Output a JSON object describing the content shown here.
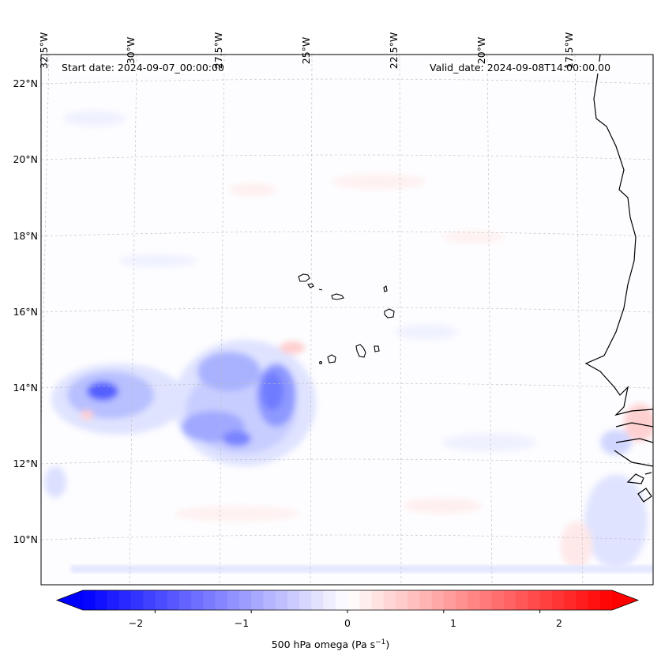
{
  "title": {
    "start_date": "Start date: 2024-09-07_00:00:00",
    "valid_date": "Valid_date: 2024-09-08T14:00:00.00"
  },
  "lon_labels": [
    "32.5°W",
    "30°W",
    "27.5°W",
    "25°W",
    "22.5°W",
    "20°W",
    "17.5°W"
  ],
  "lat_labels": [
    "22°N",
    "20°N",
    "18°N",
    "16°N",
    "14°N",
    "12°N",
    "10°N"
  ],
  "colorbar": {
    "label": "500 hPa omega (Pa s",
    "label_sup": "−1",
    "label_end": ")",
    "ticks": [
      "−2",
      "−1",
      "0",
      "1",
      "2"
    ],
    "min": -2.75,
    "max": 2.75,
    "colors": {
      "low": "#0000ff",
      "mid": "#ffffff",
      "high": "#ff0000"
    }
  },
  "islands": [
    "cape-verde-islands"
  ],
  "coast": "west-africa-coastline"
}
